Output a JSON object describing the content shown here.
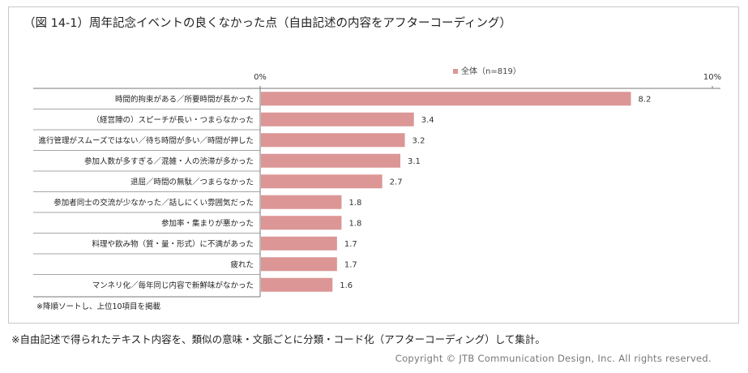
{
  "title": "（図 14-1）周年記念イベントの良くなかった点（自由記述の内容をアフターコーディング）",
  "footnote": "※自由記述で得られたテキスト内容を、類似の意味・文脈ごとに分類・コード化（アフターコーディング）して集計。",
  "copyright": "Copyright  ©  JTB Communication Design, Inc. All rights reserved.",
  "chart_data": {
    "type": "bar",
    "orientation": "horizontal",
    "categories": [
      "時間的拘束がある／所要時間が長かった",
      "（経営陣の）スピーチが長い・つまらなかった",
      "進行管理がスムーズではない／待ち時間が多い／時間が押した",
      "参加人数が多すぎる／混雑・人の渋滞が多かった",
      "退屈／時間の無駄／つまらなかった",
      "参加者同士の交流が少なかった／話しにくい雰囲気だった",
      "参加率・集まりが悪かった",
      "料理や飲み物（質・量・形式）に不満があった",
      "疲れた",
      "マンネリ化／毎年同じ内容で新鮮味がなかった"
    ],
    "series": [
      {
        "name": "全体（n=819）",
        "values": [
          8.2,
          3.4,
          3.2,
          3.1,
          2.7,
          1.8,
          1.8,
          1.7,
          1.7,
          1.6
        ],
        "labels": [
          "8.2",
          "3.4",
          "3.2",
          "3.1",
          "2.7",
          "1.8",
          "1.8",
          "1.7",
          "1.7",
          "1.6"
        ],
        "color": "#dc9696"
      }
    ],
    "xlim": [
      0,
      10
    ],
    "tick_labels": [
      "0%",
      "10%"
    ],
    "legend_position": "top-right",
    "note": "※降順ソートし、上位10項目を掲載"
  }
}
